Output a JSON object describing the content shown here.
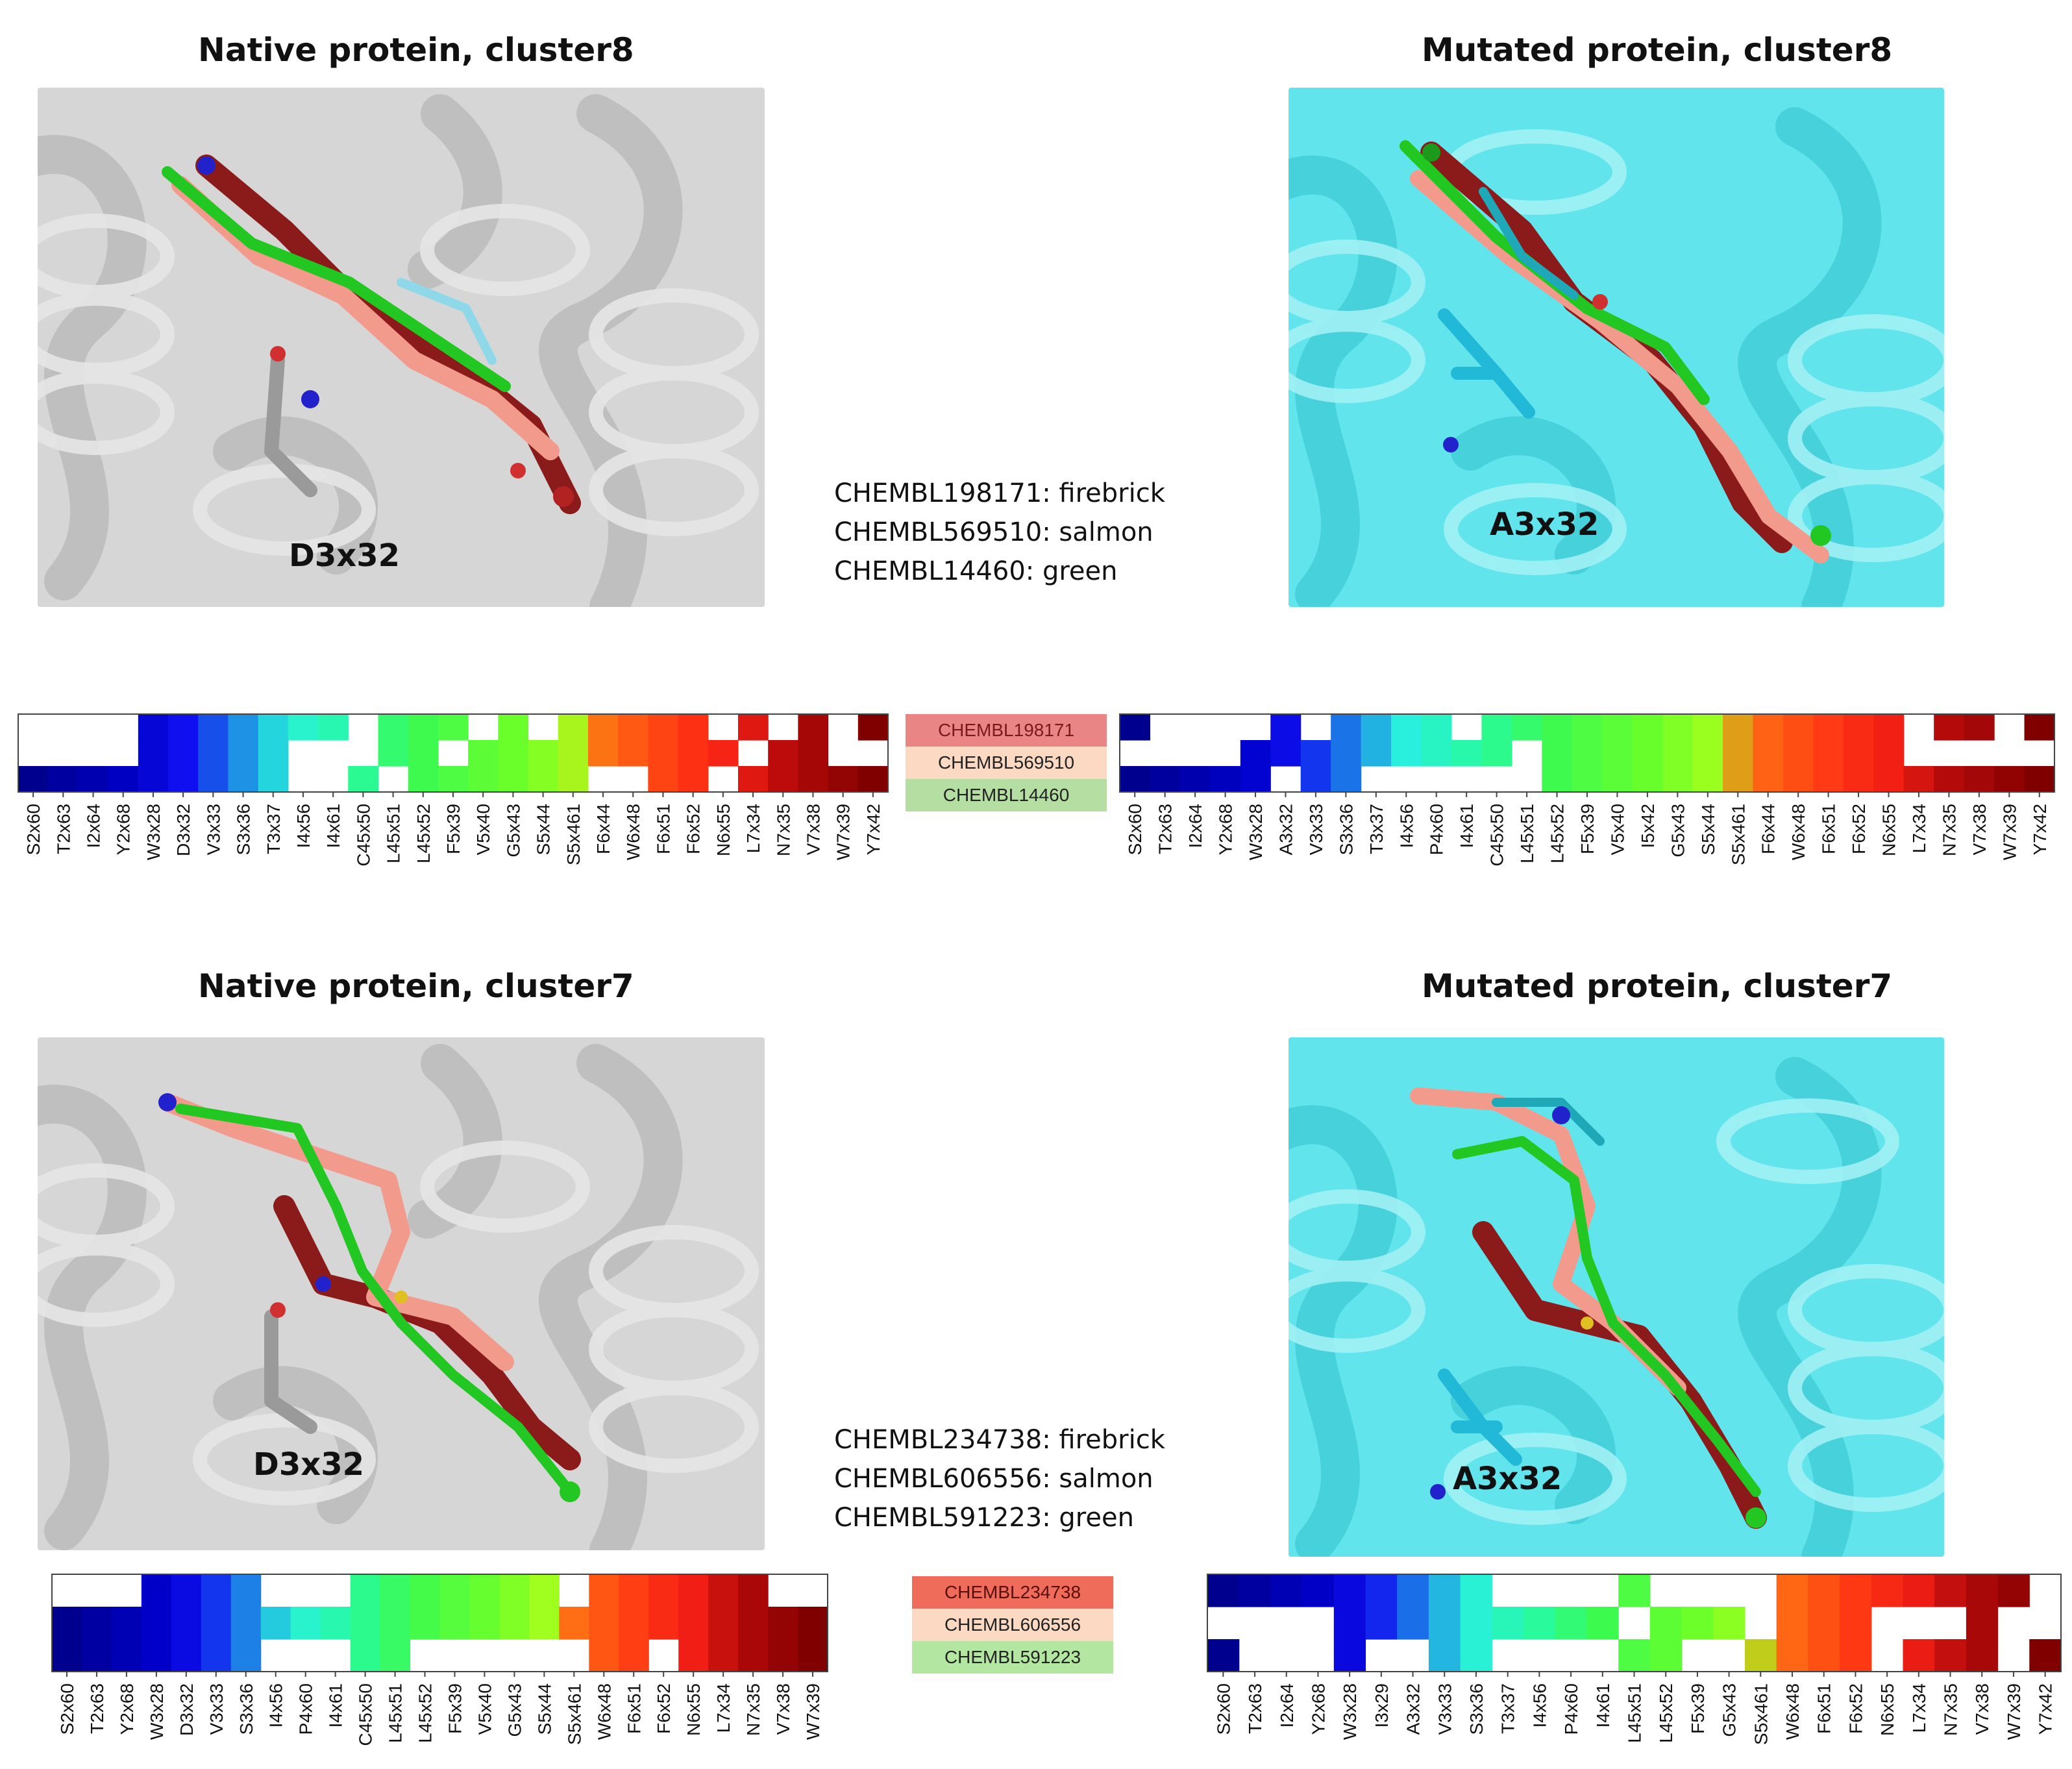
{
  "titles": {
    "native8": "Native protein, cluster8",
    "mutated8": "Mutated protein, cluster8",
    "native7": "Native protein, cluster7",
    "mutated7": "Mutated protein, cluster7"
  },
  "residue_labels": {
    "native8": "D3x32",
    "mutated8": "A3x32",
    "native7": "D3x32",
    "mutated7": "A3x32"
  },
  "ligand_legend_cluster8": [
    "CHEMBL198171: firebrick",
    "CHEMBL569510: salmon",
    "CHEMBL14460: green"
  ],
  "ligand_legend_cluster7": [
    "CHEMBL234738: firebrick",
    "CHEMBL606556: salmon",
    "CHEMBL591223: green"
  ],
  "colors": {
    "native_protein": "#d4d4d4",
    "mutated_protein": "#5ee6ee",
    "firebrick": "#b22222",
    "salmon": "#fa8072",
    "green": "#2fd02f"
  },
  "chart_data": [
    {
      "type": "heatmap",
      "id": "native-cluster8",
      "rows": [
        "CHEMBL198171",
        "CHEMBL569510",
        "CHEMBL14460"
      ],
      "columns": [
        "S2x60",
        "T2x63",
        "I2x64",
        "Y2x68",
        "W3x28",
        "D3x32",
        "V3x33",
        "S3x36",
        "T3x37",
        "I4x56",
        "I4x61",
        "C45x50",
        "L45x51",
        "L45x52",
        "F5x39",
        "V5x40",
        "G5x43",
        "S5x44",
        "S5x461",
        "F6x44",
        "W6x48",
        "F6x51",
        "F6x52",
        "N6x55",
        "L7x34",
        "N7x35",
        "V7x38",
        "W7x39",
        "Y7x42"
      ],
      "presence": [
        [
          0,
          0,
          0,
          0,
          1,
          1,
          1,
          1,
          1,
          1,
          1,
          0,
          1,
          1,
          1,
          0,
          1,
          0,
          1,
          1,
          1,
          1,
          1,
          0,
          1,
          0,
          1,
          0,
          1
        ],
        [
          0,
          0,
          0,
          0,
          1,
          1,
          1,
          1,
          1,
          0,
          0,
          0,
          1,
          1,
          0,
          1,
          1,
          1,
          1,
          1,
          1,
          1,
          1,
          1,
          0,
          1,
          1,
          0,
          0
        ],
        [
          1,
          1,
          1,
          1,
          1,
          1,
          1,
          1,
          1,
          0,
          0,
          1,
          0,
          1,
          1,
          1,
          1,
          1,
          1,
          0,
          0,
          1,
          1,
          0,
          1,
          1,
          1,
          1,
          1
        ]
      ]
    },
    {
      "type": "heatmap",
      "id": "mutated-cluster8",
      "rows": [
        "CHEMBL198171",
        "CHEMBL569510",
        "CHEMBL14460"
      ],
      "columns": [
        "S2x60",
        "T2x63",
        "I2x64",
        "Y2x68",
        "W3x28",
        "A3x32",
        "V3x33",
        "S3x36",
        "T3x37",
        "I4x56",
        "P4x60",
        "I4x61",
        "C45x50",
        "L45x51",
        "L45x52",
        "F5x39",
        "V5x40",
        "I5x42",
        "G5x43",
        "S5x44",
        "S5x461",
        "F6x44",
        "W6x48",
        "F6x51",
        "F6x52",
        "N6x55",
        "L7x34",
        "N7x35",
        "V7x38",
        "W7x39",
        "Y7x42"
      ],
      "presence": [
        [
          1,
          0,
          0,
          0,
          0,
          1,
          0,
          1,
          1,
          1,
          1,
          0,
          1,
          1,
          1,
          1,
          1,
          1,
          1,
          1,
          1,
          1,
          1,
          1,
          1,
          1,
          0,
          1,
          1,
          0,
          1
        ],
        [
          0,
          0,
          0,
          0,
          1,
          1,
          1,
          1,
          1,
          1,
          1,
          1,
          1,
          0,
          1,
          1,
          1,
          1,
          1,
          1,
          1,
          1,
          1,
          1,
          1,
          1,
          0,
          0,
          0,
          0,
          0
        ],
        [
          1,
          1,
          1,
          1,
          1,
          0,
          1,
          1,
          0,
          0,
          0,
          0,
          0,
          0,
          1,
          1,
          1,
          1,
          1,
          1,
          1,
          1,
          1,
          1,
          1,
          1,
          1,
          1,
          1,
          1,
          1
        ]
      ]
    },
    {
      "type": "heatmap",
      "id": "native-cluster7",
      "rows": [
        "CHEMBL234738",
        "CHEMBL606556",
        "CHEMBL591223"
      ],
      "columns": [
        "S2x60",
        "T2x63",
        "Y2x68",
        "W3x28",
        "D3x32",
        "V3x33",
        "S3x36",
        "I4x56",
        "P4x60",
        "I4x61",
        "C45x50",
        "L45x51",
        "L45x52",
        "F5x39",
        "V5x40",
        "G5x43",
        "S5x44",
        "S5x461",
        "W6x48",
        "F6x51",
        "F6x52",
        "N6x55",
        "L7x34",
        "N7x35",
        "V7x38",
        "W7x39"
      ],
      "presence": [
        [
          0,
          0,
          0,
          1,
          1,
          1,
          1,
          0,
          0,
          0,
          1,
          1,
          1,
          1,
          1,
          1,
          1,
          0,
          1,
          1,
          1,
          1,
          1,
          1,
          0,
          0
        ],
        [
          1,
          1,
          1,
          1,
          1,
          1,
          1,
          1,
          1,
          1,
          1,
          1,
          1,
          1,
          1,
          1,
          1,
          1,
          1,
          1,
          1,
          1,
          1,
          1,
          1,
          1
        ],
        [
          1,
          1,
          1,
          1,
          1,
          1,
          1,
          0,
          0,
          0,
          1,
          1,
          0,
          0,
          0,
          0,
          0,
          0,
          1,
          1,
          0,
          1,
          1,
          1,
          1,
          1
        ]
      ]
    },
    {
      "type": "heatmap",
      "id": "mutated-cluster7",
      "rows": [
        "CHEMBL234738",
        "CHEMBL606556",
        "CHEMBL591223"
      ],
      "columns": [
        "S2x60",
        "T2x63",
        "I2x64",
        "Y2x68",
        "W3x28",
        "I3x29",
        "A3x32",
        "V3x33",
        "S3x36",
        "T3x37",
        "I4x56",
        "P4x60",
        "I4x61",
        "L45x51",
        "L45x52",
        "F5x39",
        "G5x43",
        "S5x461",
        "W6x48",
        "F6x51",
        "F6x52",
        "N6x55",
        "L7x34",
        "N7x35",
        "V7x38",
        "W7x39",
        "Y7x42"
      ],
      "presence": [
        [
          1,
          1,
          1,
          1,
          1,
          1,
          1,
          1,
          1,
          0,
          0,
          0,
          0,
          1,
          0,
          0,
          0,
          0,
          1,
          1,
          1,
          1,
          1,
          1,
          1,
          1,
          0
        ],
        [
          0,
          0,
          0,
          0,
          1,
          1,
          1,
          1,
          1,
          1,
          1,
          1,
          1,
          0,
          1,
          1,
          1,
          0,
          1,
          1,
          1,
          0,
          0,
          0,
          1,
          0,
          0
        ],
        [
          1,
          0,
          0,
          0,
          1,
          0,
          0,
          1,
          1,
          0,
          0,
          0,
          0,
          1,
          1,
          0,
          0,
          1,
          1,
          1,
          1,
          0,
          1,
          1,
          1,
          0,
          1
        ]
      ]
    }
  ],
  "heatmap_legend_cluster8": [
    {
      "label": "CHEMBL198171",
      "color": "#e98585"
    },
    {
      "label": "CHEMBL569510",
      "color": "#fbd9c2"
    },
    {
      "label": "CHEMBL14460",
      "color": "#b5dea3"
    }
  ],
  "heatmap_legend_cluster7": [
    {
      "label": "CHEMBL234738",
      "color": "#ee6c59"
    },
    {
      "label": "CHEMBL606556",
      "color": "#fbd9c2"
    },
    {
      "label": "CHEMBL591223",
      "color": "#b3e6a1"
    }
  ]
}
